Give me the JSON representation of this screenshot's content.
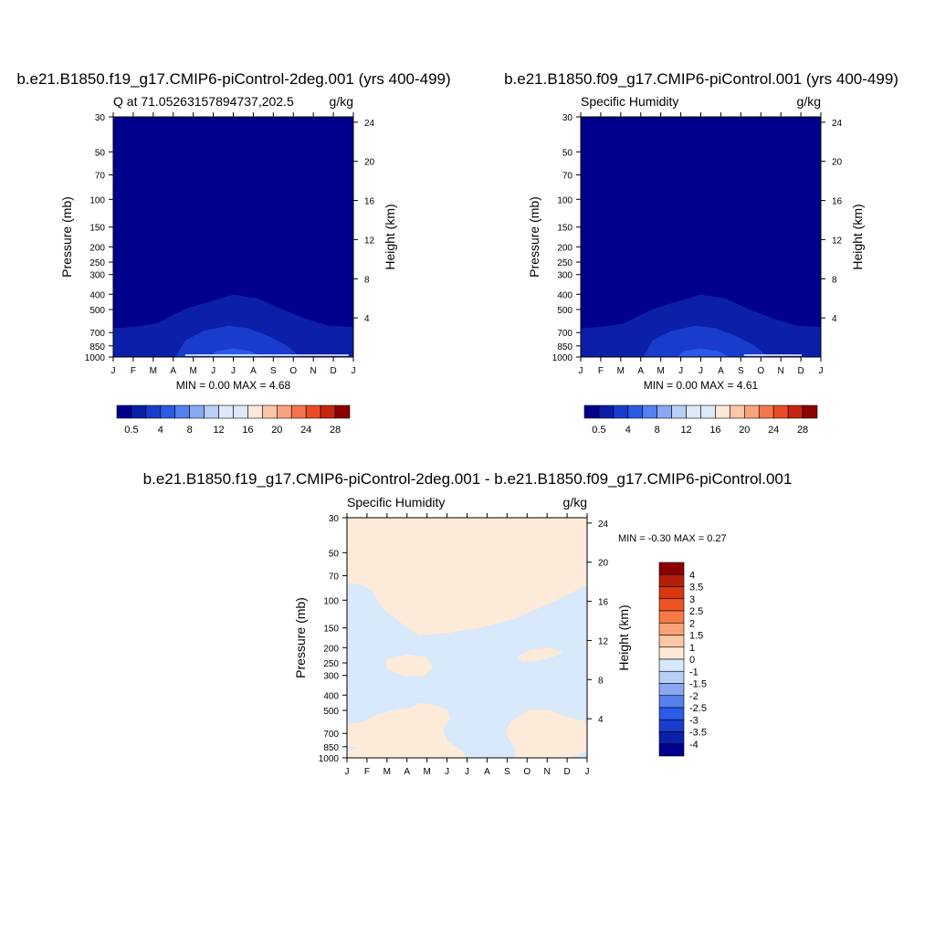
{
  "chart_data": [
    {
      "type": "heatmap",
      "title": "b.e21.B1850.f19_g17.CMIP6-piControl-2deg.001 (yrs 400-499)",
      "left_label": "Q at 71.05263157894737,202.5",
      "right_label": "g/kg",
      "ylabel": "Pressure (mb)",
      "ylabel_right": "Height (km)",
      "x_ticks": [
        "J",
        "F",
        "M",
        "A",
        "M",
        "J",
        "J",
        "A",
        "S",
        "O",
        "N",
        "D",
        "J"
      ],
      "y_ticks": [
        "30",
        "50",
        "70",
        "100",
        "150",
        "200",
        "250",
        "300",
        "400",
        "500",
        "700",
        "850",
        "1000"
      ],
      "y_right_ticks": [
        "24",
        "20",
        "16",
        "12",
        "8",
        "4"
      ],
      "stats": {
        "min_label": "MIN =",
        "min": "0.00",
        "max_label": "MAX =",
        "max": "4.68"
      },
      "colorbar_labels": [
        "0.5",
        "4",
        "8",
        "12",
        "16",
        "20",
        "24",
        "28"
      ],
      "contour_levels": [
        0.5,
        1,
        2,
        4
      ],
      "max_value": 4.68,
      "max_month": "J"
    },
    {
      "type": "heatmap",
      "title": "b.e21.B1850.f09_g17.CMIP6-piControl.001 (yrs 400-499)",
      "left_label": "Specific Humidity",
      "right_label": "g/kg",
      "ylabel": "Pressure (mb)",
      "ylabel_right": "Height (km)",
      "x_ticks": [
        "J",
        "F",
        "M",
        "A",
        "M",
        "J",
        "J",
        "A",
        "S",
        "O",
        "N",
        "D",
        "J"
      ],
      "y_ticks": [
        "30",
        "50",
        "70",
        "100",
        "150",
        "200",
        "250",
        "300",
        "400",
        "500",
        "700",
        "850",
        "1000"
      ],
      "y_right_ticks": [
        "24",
        "20",
        "16",
        "12",
        "8",
        "4"
      ],
      "stats": {
        "min_label": "MIN =",
        "min": "0.00",
        "max_label": "MAX =",
        "max": "4.61"
      },
      "colorbar_labels": [
        "0.5",
        "4",
        "8",
        "12",
        "16",
        "20",
        "24",
        "28"
      ],
      "contour_levels": [
        0.5,
        1,
        2,
        4
      ],
      "max_value": 4.61,
      "max_month": "J"
    },
    {
      "type": "heatmap",
      "title": "b.e21.B1850.f19_g17.CMIP6-piControl-2deg.001 - b.e21.B1850.f09_g17.CMIP6-piControl.001",
      "left_label": "Specific Humidity",
      "right_label": "g/kg",
      "ylabel": "Pressure (mb)",
      "ylabel_right": "Height (km)",
      "x_ticks": [
        "J",
        "F",
        "M",
        "A",
        "M",
        "J",
        "J",
        "A",
        "S",
        "O",
        "N",
        "D",
        "J"
      ],
      "y_ticks": [
        "30",
        "50",
        "70",
        "100",
        "150",
        "200",
        "250",
        "300",
        "400",
        "500",
        "700",
        "850",
        "1000"
      ],
      "y_right_ticks": [
        "24",
        "20",
        "16",
        "12",
        "8",
        "4"
      ],
      "stats": {
        "min_label": "MIN =",
        "min": "-0.30",
        "max_label": "MAX =",
        "max": "0.27"
      },
      "colorbar_labels": [
        "4",
        "3.5",
        "3",
        "2.5",
        "2",
        "1.5",
        "1",
        "0",
        "-1",
        "-1.5",
        "-2",
        "-2.5",
        "-3",
        "-3.5",
        "-4"
      ],
      "contour_levels": [
        -1,
        0,
        1
      ],
      "legend_placement": "right"
    }
  ],
  "colors": {
    "abs_scale": [
      "#00008c",
      "#0b1fa8",
      "#1a3ccc",
      "#2a5be6",
      "#5680ee",
      "#8aa8f2",
      "#b9cff5",
      "#dde9fb",
      "#fde8da",
      "#fbc6a8",
      "#f8a37f",
      "#f4764f",
      "#e94c27",
      "#c7250e",
      "#8c0000"
    ],
    "diff_scale": [
      "#8c0000",
      "#b3200a",
      "#d83710",
      "#ee5522",
      "#f57a48",
      "#f8a276",
      "#fbc8a6",
      "#fde8d6",
      "#d6e8fb",
      "#b9cff5",
      "#8aa8f2",
      "#5680ee",
      "#2a5be6",
      "#1a3ccc",
      "#0b1fa8",
      "#00008c"
    ],
    "abs_fills": [
      "#00008c",
      "#0b1fa8",
      "#1a3ccc",
      "#2a5be6"
    ],
    "diff_fills": [
      "#d7e9fb",
      "#feead8"
    ]
  }
}
